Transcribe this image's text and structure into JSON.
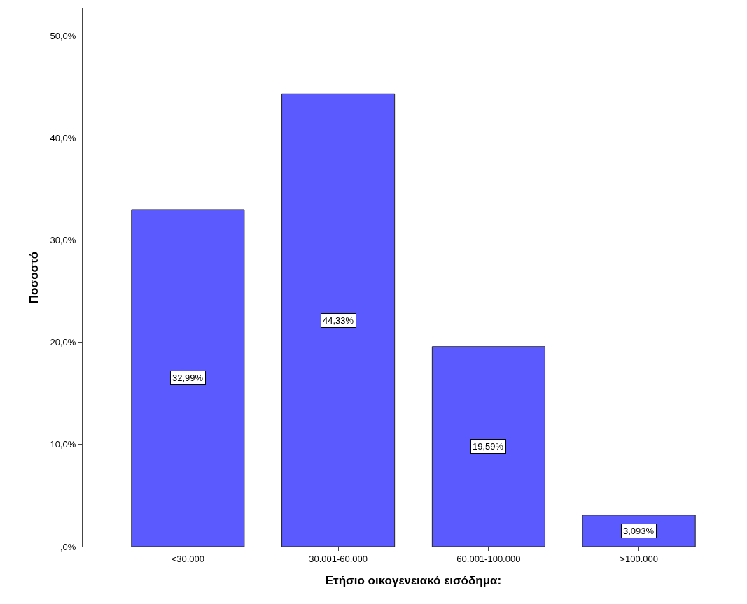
{
  "chart_data": {
    "type": "bar",
    "xlabel": "Ετήσιο οικογενειακό εισόδημα:",
    "ylabel": "Ποσοστό",
    "categories": [
      "<30.000",
      "30.001-60.000",
      "60.001-100.000",
      ">100.000"
    ],
    "values": [
      32.99,
      44.33,
      19.59,
      3.093
    ],
    "value_labels": [
      "32,99%",
      "44,33%",
      "19,59%",
      "3,093%"
    ],
    "color": "#5a5aff",
    "ylim": [
      0,
      52.7
    ],
    "yticks": [
      {
        "value": 0,
        "label": ",0%"
      },
      {
        "value": 10,
        "label": "10,0%"
      },
      {
        "value": 20,
        "label": "20,0%"
      },
      {
        "value": 30,
        "label": "30,0%"
      },
      {
        "value": 40,
        "label": "40,0%"
      },
      {
        "value": 50,
        "label": "50,0%"
      }
    ],
    "grid": false,
    "legend": false
  }
}
